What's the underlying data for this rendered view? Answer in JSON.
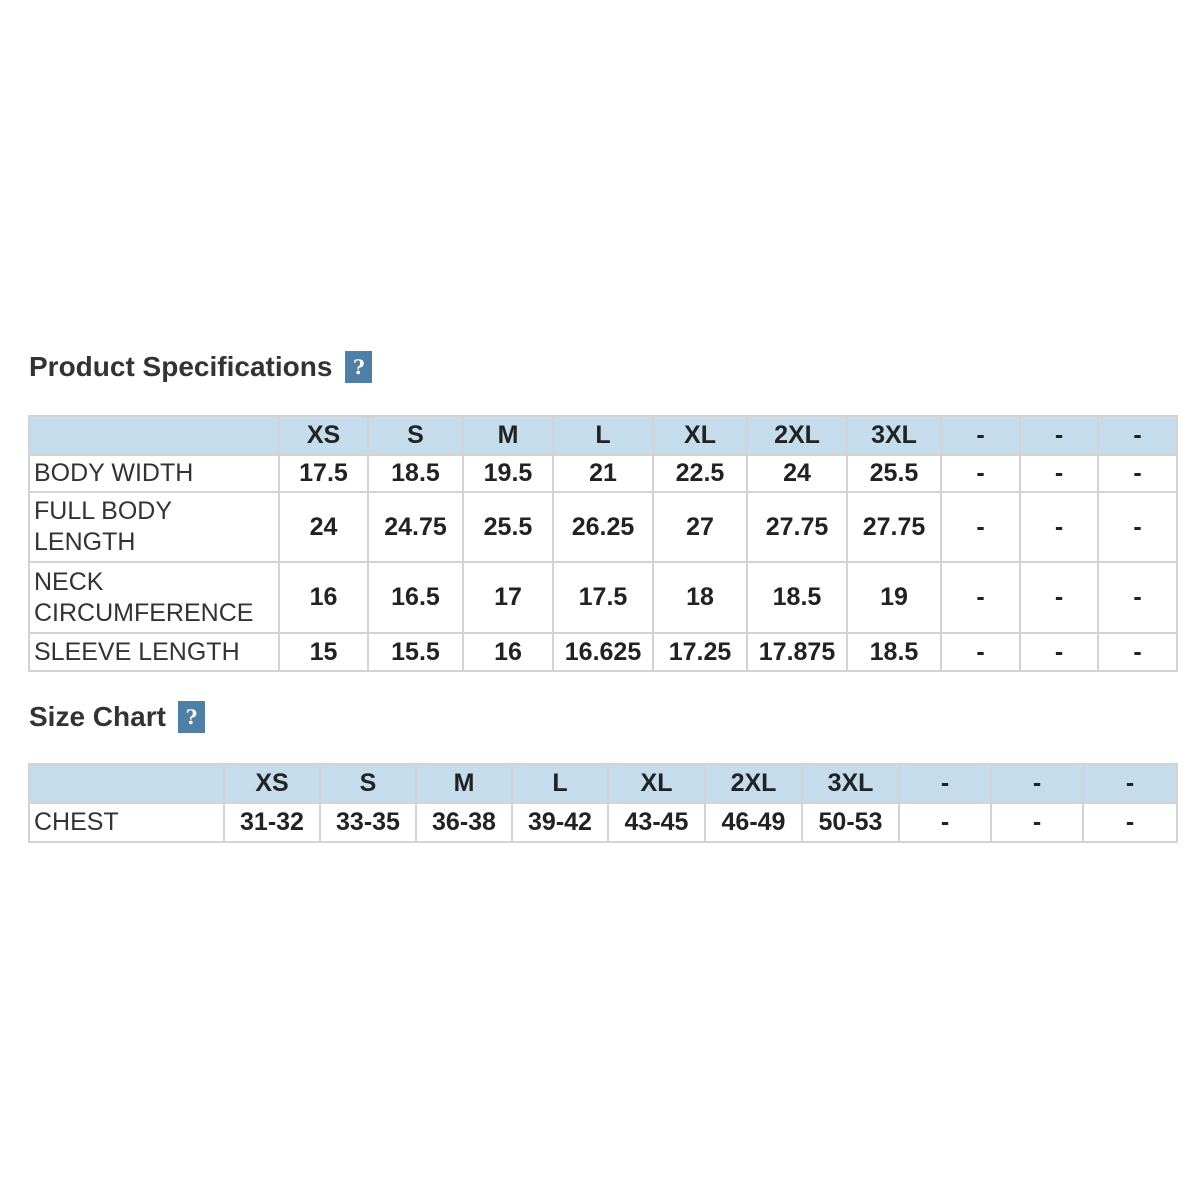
{
  "specifications": {
    "title": "Product Specifications",
    "help_label": "?",
    "headers": [
      "",
      "XS",
      "S",
      "M",
      "L",
      "XL",
      "2XL",
      "3XL",
      "-",
      "-",
      "-"
    ],
    "rows": [
      {
        "label": "BODY WIDTH",
        "values": [
          "17.5",
          "18.5",
          "19.5",
          "21",
          "22.5",
          "24",
          "25.5",
          "-",
          "-",
          "-"
        ]
      },
      {
        "label": "FULL BODY LENGTH",
        "values": [
          "24",
          "24.75",
          "25.5",
          "26.25",
          "27",
          "27.75",
          "27.75",
          "-",
          "-",
          "-"
        ]
      },
      {
        "label": "NECK CIRCUMFERENCE",
        "values": [
          "16",
          "16.5",
          "17",
          "17.5",
          "18",
          "18.5",
          "19",
          "-",
          "-",
          "-"
        ]
      },
      {
        "label": "SLEEVE LENGTH",
        "values": [
          "15",
          "15.5",
          "16",
          "16.625",
          "17.25",
          "17.875",
          "18.5",
          "-",
          "-",
          "-"
        ]
      }
    ]
  },
  "size_chart": {
    "title": "Size Chart",
    "help_label": "?",
    "headers": [
      "",
      "XS",
      "S",
      "M",
      "L",
      "XL",
      "2XL",
      "3XL",
      "-",
      "-",
      "-"
    ],
    "rows": [
      {
        "label": "CHEST",
        "values": [
          "31-32",
          "33-35",
          "36-38",
          "39-42",
          "43-45",
          "46-49",
          "50-53",
          "-",
          "-",
          "-"
        ]
      }
    ]
  },
  "colors": {
    "header_bg": "#c5dced",
    "help_icon_bg": "#4f7ea6",
    "border": "#d3d3d3",
    "text": "#333333"
  },
  "icons": {
    "help": "question-mark-icon"
  }
}
